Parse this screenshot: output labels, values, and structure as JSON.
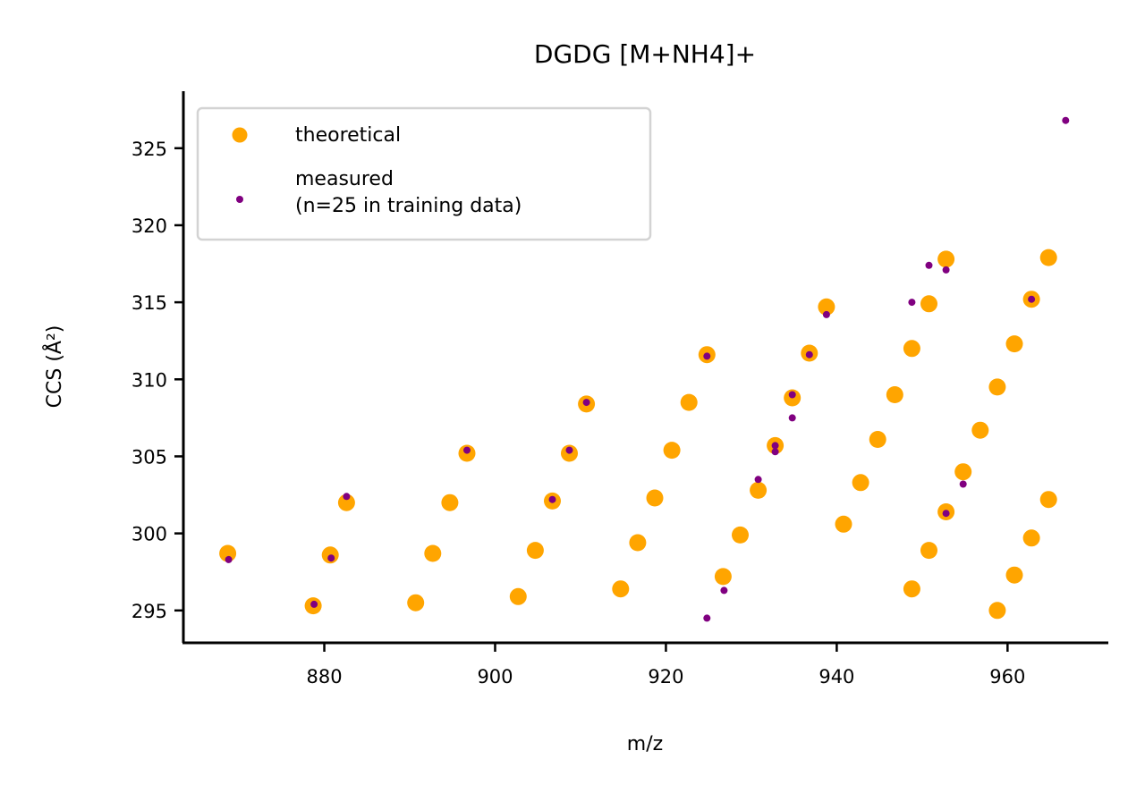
{
  "chart_data": {
    "type": "scatter",
    "title": "DGDG [M+NH4]+",
    "xlabel": "m/z",
    "ylabel": "CCS (Å²)",
    "xlim": [
      863.5,
      971.8
    ],
    "ylim": [
      292.9,
      328.7
    ],
    "xticks": [
      880,
      900,
      920,
      940,
      960
    ],
    "yticks": [
      295,
      300,
      305,
      310,
      315,
      320,
      325
    ],
    "legend_position": "top-left",
    "grid": false,
    "series": [
      {
        "name": "theoretical",
        "color": "#FFA500",
        "marker": "large-dot",
        "x": [
          868.7,
          878.7,
          880.7,
          882.6,
          890.7,
          892.7,
          894.7,
          896.7,
          902.7,
          904.7,
          906.7,
          908.7,
          910.7,
          914.7,
          916.7,
          918.7,
          920.7,
          922.7,
          924.8,
          926.7,
          928.7,
          930.8,
          932.8,
          934.8,
          936.8,
          938.8,
          940.8,
          942.8,
          944.8,
          946.8,
          948.8,
          948.8,
          950.8,
          950.8,
          952.8,
          952.8,
          954.8,
          956.8,
          958.8,
          958.8,
          960.8,
          960.8,
          962.8,
          962.8,
          964.8,
          964.8
        ],
        "y": [
          298.7,
          295.3,
          298.6,
          302.0,
          295.5,
          298.7,
          302.0,
          305.2,
          295.9,
          298.9,
          302.1,
          305.2,
          308.4,
          296.4,
          299.4,
          302.3,
          305.4,
          308.5,
          311.6,
          297.2,
          299.9,
          302.8,
          305.7,
          308.8,
          311.7,
          314.7,
          300.6,
          303.3,
          306.1,
          309.0,
          296.4,
          312.0,
          298.9,
          314.9,
          301.4,
          317.8,
          304.0,
          306.7,
          295.0,
          309.5,
          297.3,
          312.3,
          299.7,
          315.2,
          302.2,
          317.9
        ]
      },
      {
        "name": "measured\n(n=25 in training data)",
        "color": "#800080",
        "marker": "small-dot",
        "x": [
          868.8,
          878.8,
          880.8,
          882.6,
          896.7,
          906.7,
          908.7,
          910.7,
          924.8,
          924.8,
          926.8,
          930.8,
          932.8,
          932.8,
          934.8,
          934.8,
          936.8,
          938.8,
          948.8,
          950.8,
          952.8,
          952.8,
          954.8,
          962.8,
          966.8
        ],
        "y": [
          298.3,
          295.4,
          298.4,
          302.4,
          305.4,
          302.2,
          305.4,
          308.5,
          294.5,
          311.5,
          296.3,
          303.5,
          305.3,
          305.7,
          307.5,
          309.0,
          311.6,
          314.2,
          315.0,
          317.4,
          301.3,
          317.1,
          303.2,
          315.2,
          326.8
        ]
      }
    ]
  }
}
